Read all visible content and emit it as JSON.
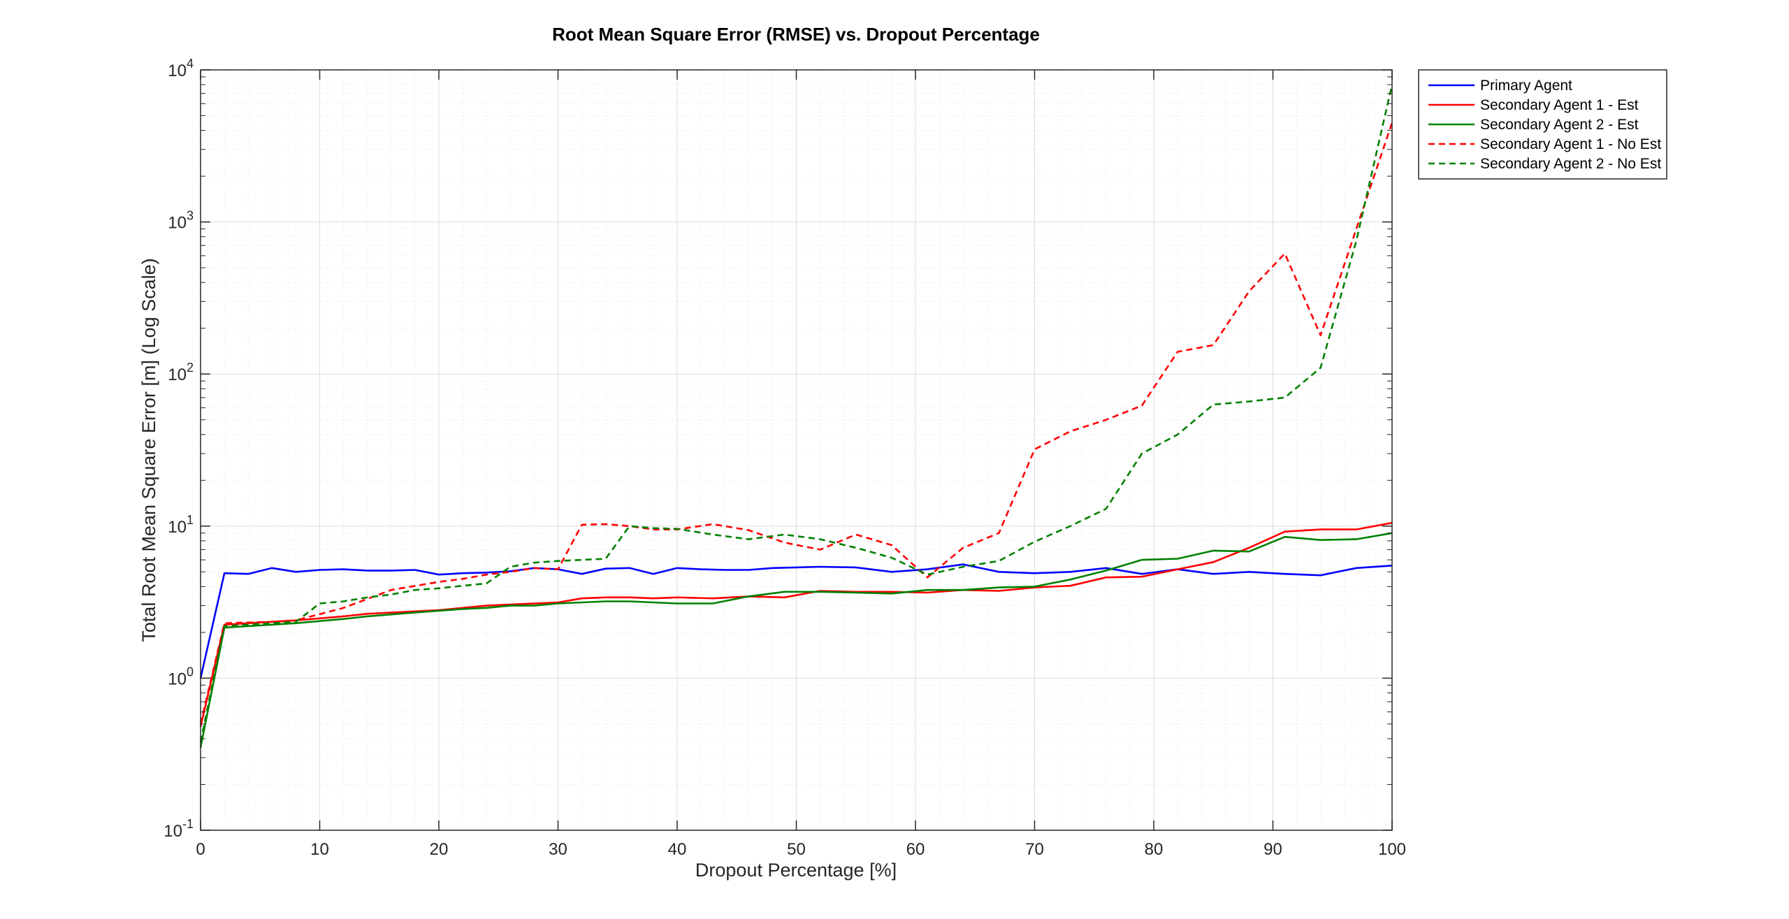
{
  "chart_data": {
    "type": "line",
    "title": "Root Mean Square Error (RMSE) vs. Dropout Percentage",
    "xlabel": "Dropout Percentage [%]",
    "ylabel": "Total Root Mean Square Error [m] (Log Scale)",
    "xlim": [
      0,
      100
    ],
    "ylim": [
      0.1,
      10000
    ],
    "yscale": "log",
    "x_ticks": [
      "0",
      "10",
      "20",
      "30",
      "40",
      "50",
      "60",
      "70",
      "80",
      "90",
      "100"
    ],
    "y_tick_bases": [
      "10",
      "10",
      "10",
      "10",
      "10",
      "10"
    ],
    "y_tick_exponents": [
      "-1",
      "0",
      "1",
      "2",
      "3",
      "4"
    ],
    "grid": true,
    "minor_grid": true,
    "legend_position": "outside-top-right",
    "series": [
      {
        "name": "Primary Agent",
        "color": "#0000ff",
        "dash": "solid",
        "x": [
          0,
          2,
          4,
          6,
          8,
          10,
          12,
          14,
          16,
          18,
          20,
          22,
          24,
          26,
          28,
          30,
          32,
          34,
          36,
          38,
          40,
          42,
          44,
          46,
          48,
          50,
          52,
          55,
          58,
          61,
          64,
          67,
          70,
          73,
          76,
          79,
          82,
          85,
          88,
          91,
          94,
          97,
          100
        ],
        "y": [
          1.0,
          4.9,
          4.85,
          5.3,
          5.0,
          5.15,
          5.2,
          5.1,
          5.1,
          5.15,
          4.8,
          4.9,
          4.95,
          5.05,
          5.3,
          5.2,
          4.85,
          5.25,
          5.3,
          4.85,
          5.3,
          5.2,
          5.15,
          5.15,
          5.3,
          5.35,
          5.4,
          5.35,
          5.0,
          5.2,
          5.6,
          5.0,
          4.9,
          5.0,
          5.3,
          4.85,
          5.2,
          4.85,
          5.0,
          4.85,
          4.75,
          5.3,
          5.5
        ]
      },
      {
        "name": "Secondary Agent 1 - Est",
        "color": "#ff0000",
        "dash": "solid",
        "x": [
          0,
          2,
          6,
          8,
          12,
          14,
          16,
          18,
          20,
          22,
          24,
          26,
          28,
          30,
          32,
          34,
          36,
          38,
          40,
          43,
          46,
          49,
          52,
          55,
          58,
          61,
          64,
          67,
          70,
          73,
          76,
          79,
          82,
          85,
          88,
          91,
          94,
          97,
          100
        ],
        "y": [
          0.48,
          2.25,
          2.35,
          2.4,
          2.55,
          2.65,
          2.7,
          2.75,
          2.8,
          2.9,
          3.0,
          3.05,
          3.1,
          3.15,
          3.35,
          3.4,
          3.4,
          3.35,
          3.4,
          3.35,
          3.45,
          3.4,
          3.75,
          3.7,
          3.7,
          3.65,
          3.8,
          3.75,
          3.95,
          4.05,
          4.6,
          4.65,
          5.2,
          5.8,
          7.2,
          9.2,
          9.5,
          9.5,
          10.5
        ]
      },
      {
        "name": "Secondary Agent 2 - Est",
        "color": "#008000",
        "dash": "solid",
        "x": [
          0,
          2,
          4,
          8,
          12,
          14,
          18,
          22,
          24,
          26,
          28,
          30,
          32,
          34,
          36,
          38,
          40,
          43,
          46,
          49,
          52,
          55,
          58,
          61,
          64,
          67,
          70,
          73,
          76,
          79,
          82,
          85,
          88,
          91,
          94,
          97,
          100
        ],
        "y": [
          0.35,
          2.15,
          2.2,
          2.3,
          2.45,
          2.55,
          2.7,
          2.85,
          2.9,
          3.0,
          3.0,
          3.1,
          3.15,
          3.2,
          3.2,
          3.15,
          3.1,
          3.1,
          3.45,
          3.7,
          3.7,
          3.65,
          3.6,
          3.8,
          3.8,
          3.95,
          4.0,
          4.45,
          5.1,
          6.0,
          6.1,
          6.9,
          6.8,
          8.5,
          8.1,
          8.2,
          9.0
        ]
      },
      {
        "name": "Secondary Agent 1 - No Est",
        "color": "#ff0000",
        "dash": "dashed",
        "x": [
          0,
          2,
          6,
          8,
          12,
          16,
          20,
          22,
          24,
          26,
          28,
          30,
          32,
          34,
          36,
          38,
          40,
          43,
          46,
          49,
          52,
          55,
          58,
          61,
          64,
          67,
          70,
          73,
          76,
          79,
          82,
          85,
          88,
          91,
          94,
          97,
          100
        ],
        "y": [
          0.5,
          2.3,
          2.35,
          2.4,
          2.9,
          3.8,
          4.3,
          4.5,
          4.8,
          5.0,
          5.3,
          5.2,
          10.2,
          10.3,
          10.0,
          9.5,
          9.5,
          10.3,
          9.4,
          7.8,
          7.0,
          8.8,
          7.5,
          4.6,
          7.2,
          9.0,
          32,
          42,
          50,
          62,
          140,
          155,
          350,
          620,
          180,
          900,
          4500
        ]
      },
      {
        "name": "Secondary Agent 2 - No Est",
        "color": "#008000",
        "dash": "dashed",
        "x": [
          0,
          2,
          4,
          6,
          8,
          10,
          12,
          14,
          16,
          18,
          20,
          22,
          24,
          26,
          28,
          30,
          32,
          34,
          36,
          38,
          40,
          43,
          46,
          49,
          52,
          55,
          58,
          61,
          64,
          67,
          70,
          73,
          76,
          79,
          82,
          85,
          88,
          91,
          94,
          97,
          100
        ],
        "y": [
          0.38,
          2.2,
          2.25,
          2.3,
          2.35,
          3.1,
          3.2,
          3.4,
          3.55,
          3.8,
          3.9,
          4.05,
          4.2,
          5.4,
          5.75,
          5.9,
          6.0,
          6.1,
          10.0,
          9.7,
          9.6,
          8.8,
          8.2,
          8.8,
          8.2,
          7.2,
          6.2,
          4.8,
          5.4,
          5.9,
          7.9,
          10.0,
          13.0,
          30,
          40,
          63,
          66,
          70,
          110,
          750,
          8000
        ]
      }
    ]
  }
}
